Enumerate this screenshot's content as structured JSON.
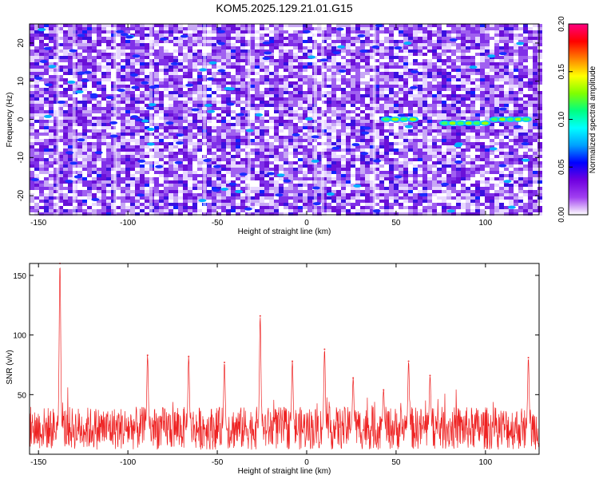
{
  "title": "KOM5.2025.129.21.01.G15",
  "chart_data": [
    {
      "type": "heatmap",
      "xlabel": "Height of straight line (km)",
      "ylabel": "Frequency (Hz)",
      "xlim": [
        -155,
        130
      ],
      "ylim": [
        -25,
        25
      ],
      "xticks": [
        -150,
        -100,
        -50,
        0,
        50,
        100
      ],
      "yticks": [
        -20,
        -10,
        0,
        10,
        20
      ],
      "colorbar": {
        "label": "Normalized spectral amplitude",
        "range": [
          0,
          0.2
        ],
        "ticks": [
          "0.00",
          "0.05",
          "0.10",
          "0.15",
          "0.20"
        ],
        "colormap": [
          "#ffffff",
          "#a040f0",
          "#7000e0",
          "#0000ff",
          "#00a0ff",
          "#00ffff",
          "#00ff80",
          "#80ff00",
          "#ffff00",
          "#ff8000",
          "#ff0000",
          "#ff0080"
        ]
      },
      "background_level": "0.02-0.05 (purple speckle)",
      "notable_features": [
        {
          "x_range": [
            42,
            62
          ],
          "y": 0,
          "amplitude": 0.09
        },
        {
          "x_range": [
            75,
            102
          ],
          "y": -1,
          "amplitude": 0.1
        },
        {
          "x_range": [
            103,
            125
          ],
          "y": 0,
          "amplitude": 0.1
        }
      ]
    },
    {
      "type": "line",
      "xlabel": "Height of straight line (km)",
      "ylabel": "SNR (v/v)",
      "xlim": [
        -155,
        130
      ],
      "ylim": [
        0,
        160
      ],
      "xticks": [
        -150,
        -100,
        -50,
        0,
        50,
        100
      ],
      "yticks": [
        50,
        100,
        150
      ],
      "color": "#ee2222",
      "baseline": 20,
      "noise_range": [
        5,
        45
      ],
      "peaks": [
        {
          "x": -138,
          "y": 160
        },
        {
          "x": -89,
          "y": 83
        },
        {
          "x": -66,
          "y": 82
        },
        {
          "x": -46,
          "y": 77
        },
        {
          "x": -26,
          "y": 116
        },
        {
          "x": -8,
          "y": 78
        },
        {
          "x": 10,
          "y": 88
        },
        {
          "x": 26,
          "y": 64
        },
        {
          "x": 43,
          "y": 54
        },
        {
          "x": 57,
          "y": 78
        },
        {
          "x": 69,
          "y": 66
        },
        {
          "x": 124,
          "y": 81
        }
      ]
    }
  ]
}
